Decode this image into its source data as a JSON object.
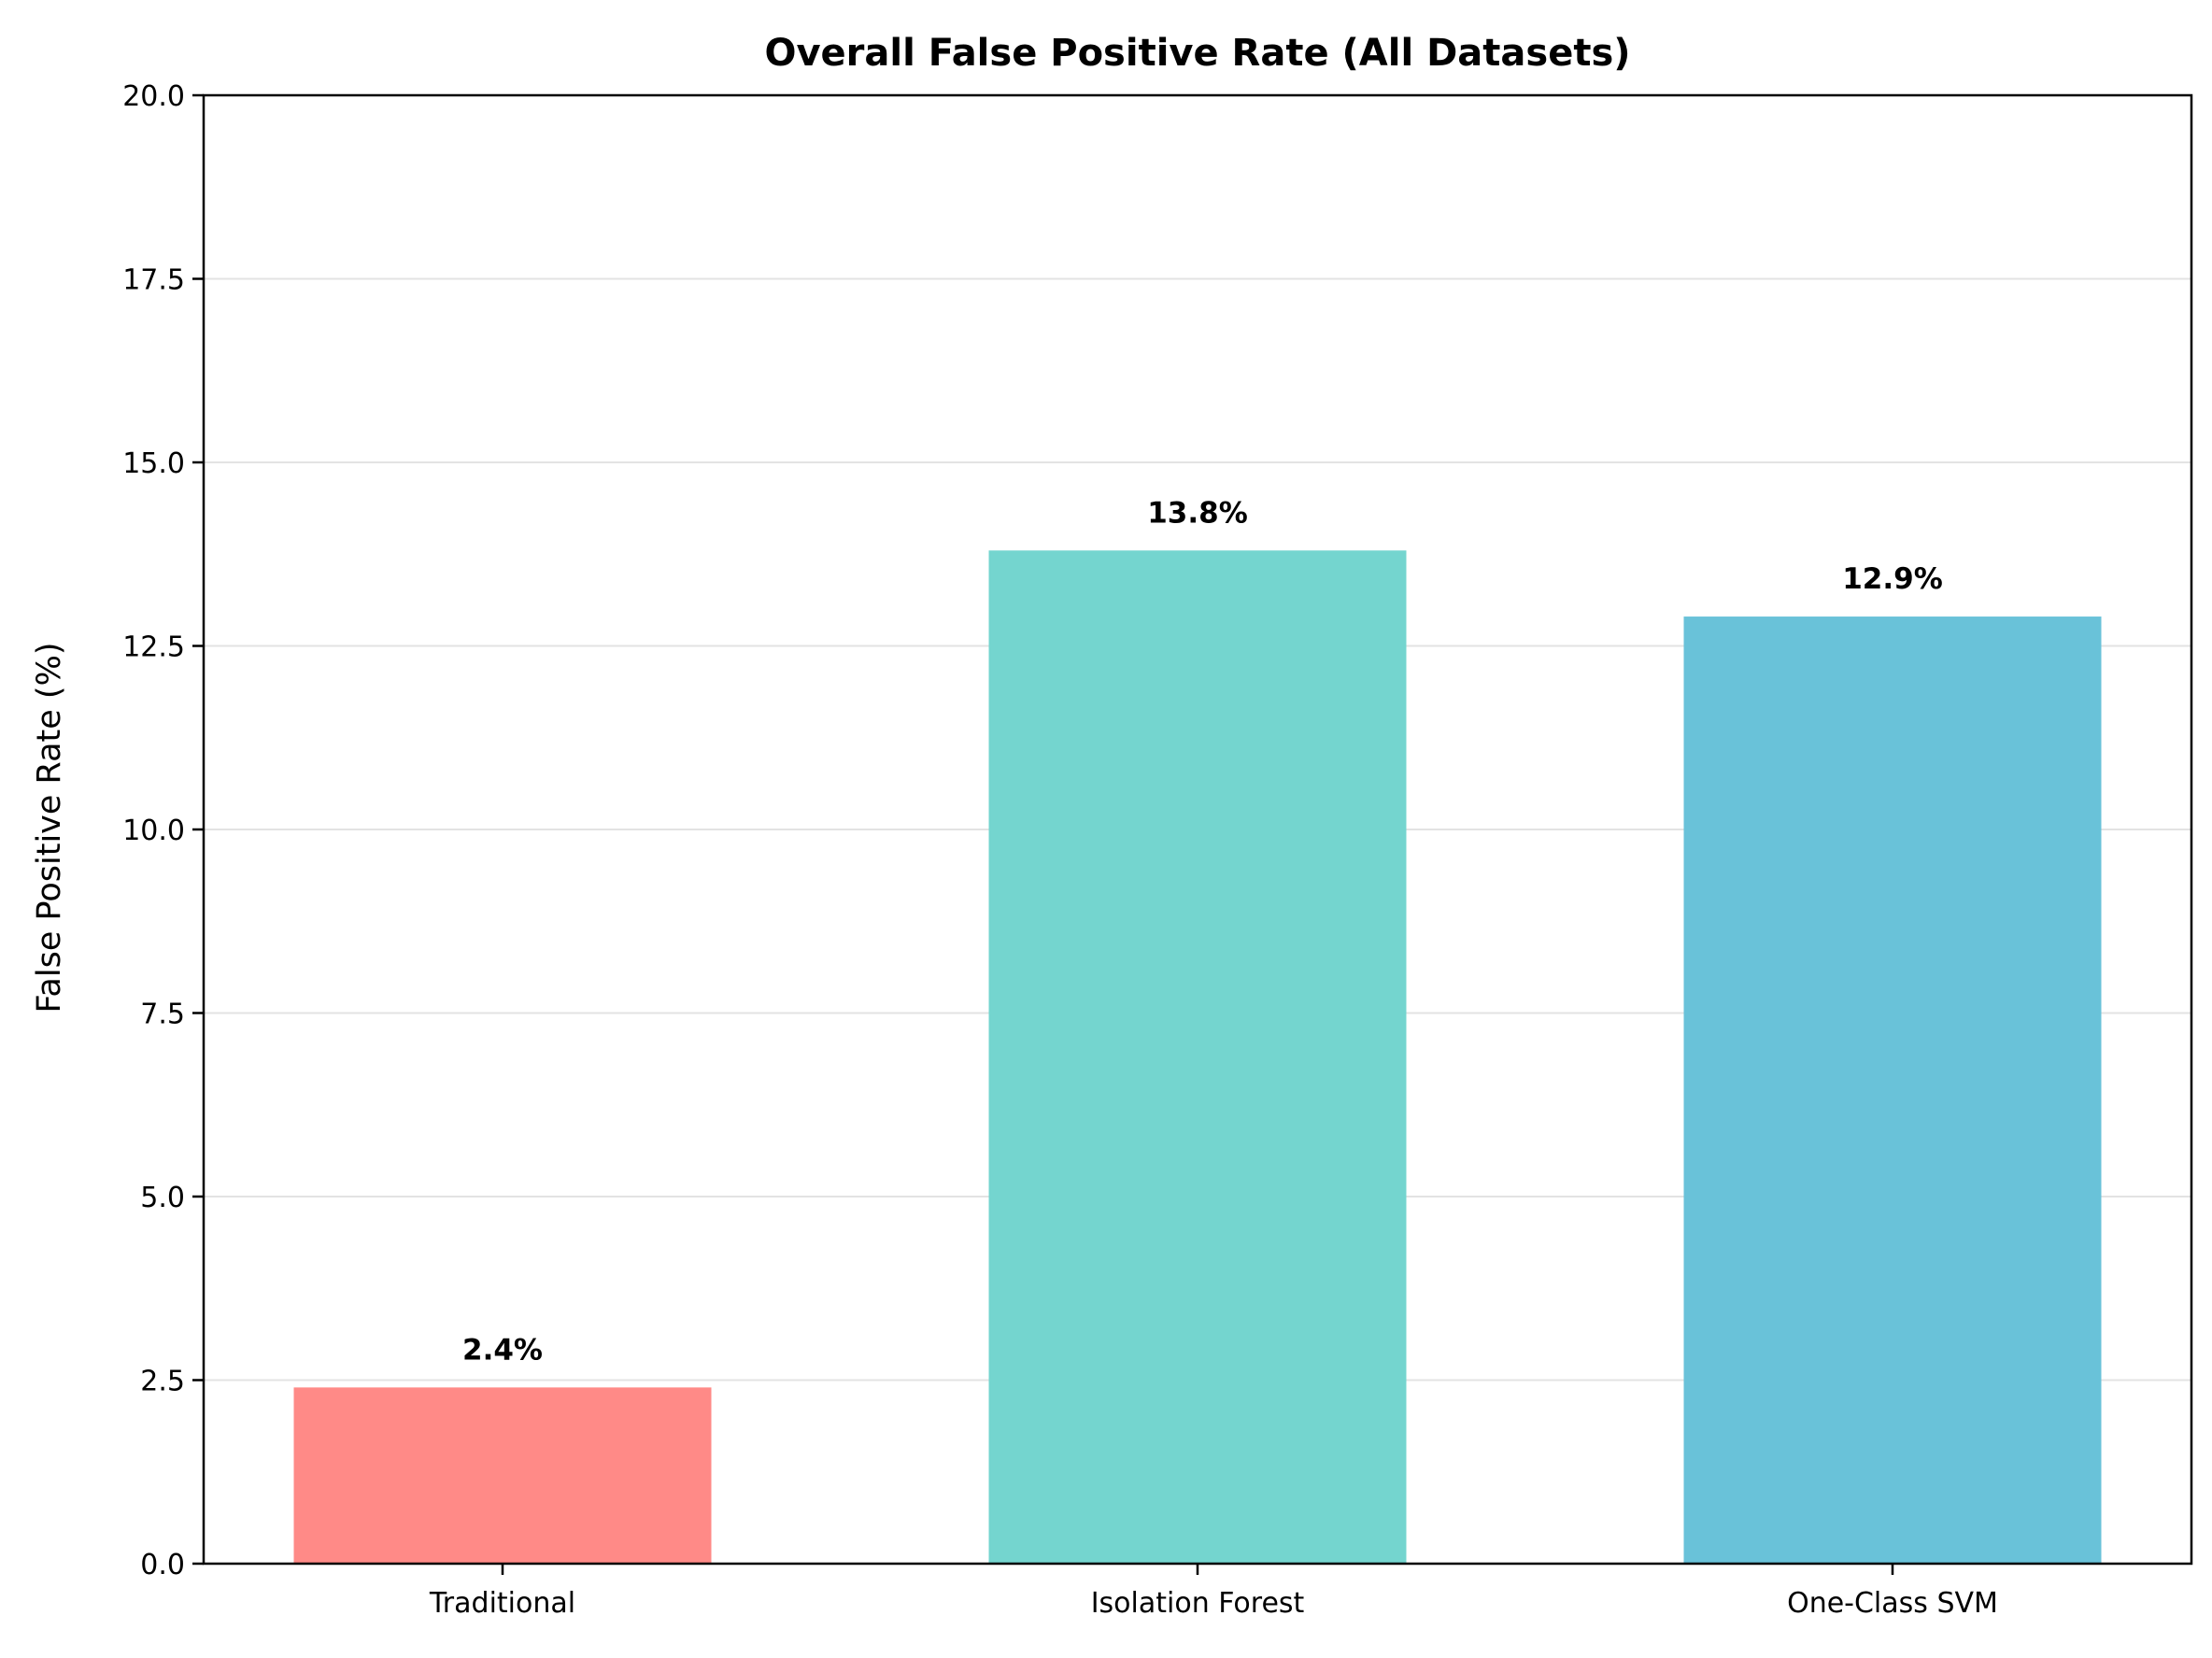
{
  "chart_data": {
    "type": "bar",
    "title": "Overall False Positive Rate (All Datasets)",
    "xlabel": "",
    "ylabel": "False Positive Rate (%)",
    "categories": [
      "Traditional",
      "Isolation Forest",
      "One-Class SVM"
    ],
    "values": [
      2.4,
      13.8,
      12.9
    ],
    "value_labels": [
      "2.4%",
      "13.8%",
      "12.9%"
    ],
    "colors": [
      "#ff8a87",
      "#74d5cf",
      "#69c2d9"
    ],
    "ylim": [
      0,
      20
    ],
    "yticks": [
      0.0,
      2.5,
      5.0,
      7.5,
      10.0,
      12.5,
      15.0,
      17.5,
      20.0
    ],
    "ytick_labels": [
      "0.0",
      "2.5",
      "5.0",
      "7.5",
      "10.0",
      "12.5",
      "15.0",
      "17.5",
      "20.0"
    ],
    "grid": "y",
    "legend": "none"
  }
}
